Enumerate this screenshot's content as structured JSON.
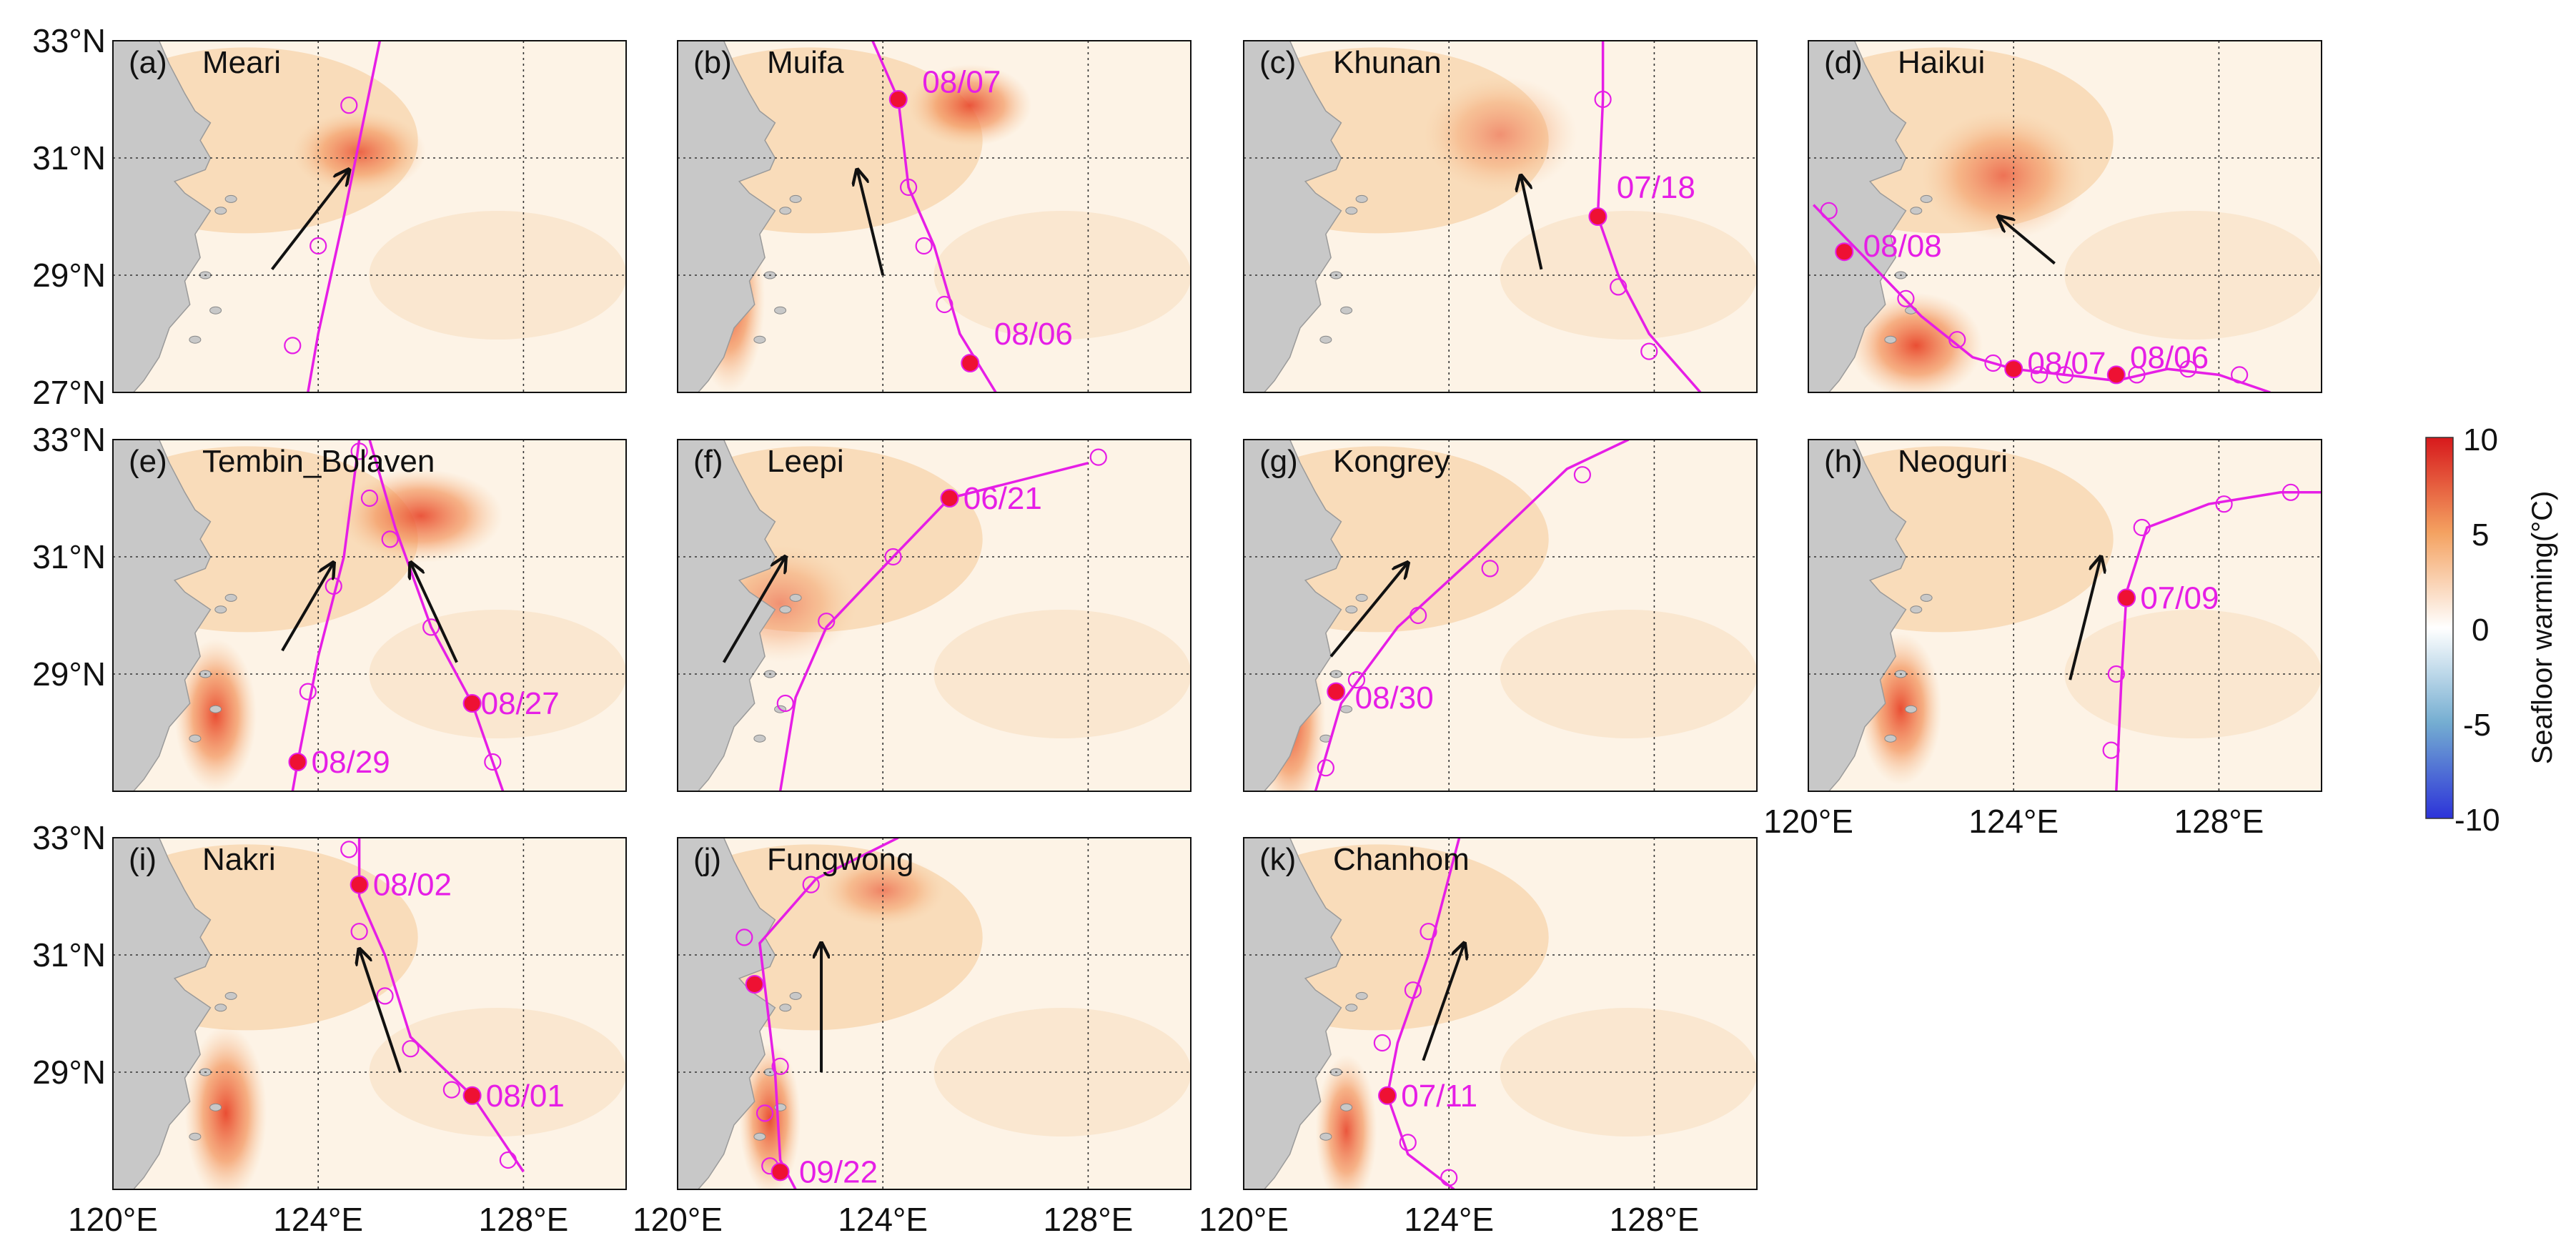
{
  "figure": {
    "lat_labels": [
      "33°N",
      "31°N",
      "29°N",
      "27°N"
    ],
    "lon_labels": [
      "120°E",
      "124°E",
      "128°E"
    ],
    "colorbar": {
      "title": "Seafloor warming(°C)",
      "ticks": [
        "10",
        "5",
        "0",
        "-5",
        "-10"
      ],
      "colors": [
        "#d7191c",
        "#f4a261",
        "#ffffff",
        "#74add1",
        "#2c33d9"
      ]
    }
  },
  "panels": [
    {
      "letter": "(a)",
      "name": "Meari",
      "track": [
        [
          125.2,
          33.0
        ],
        [
          124.5,
          30.0
        ],
        [
          124.0,
          28.0
        ],
        [
          123.8,
          27.0
        ]
      ],
      "circles": [
        [
          124.6,
          31.9
        ],
        [
          124.0,
          29.5
        ],
        [
          123.5,
          27.8
        ]
      ],
      "dots": [],
      "dates": [],
      "arrows": [
        [
          123.1,
          29.1,
          124.6,
          30.8
        ]
      ],
      "hot": [
        [
          124.8,
          31.1,
          1.3,
          0.7,
          0.8
        ]
      ]
    },
    {
      "letter": "(b)",
      "name": "Muifa",
      "track": [
        [
          123.8,
          33.0
        ],
        [
          124.3,
          32.0
        ],
        [
          124.5,
          30.5
        ],
        [
          125.0,
          29.5
        ],
        [
          125.5,
          28.0
        ],
        [
          126.2,
          27.0
        ]
      ],
      "circles": [
        [
          124.5,
          30.5
        ],
        [
          124.8,
          29.5
        ],
        [
          125.2,
          28.5
        ]
      ],
      "dots": [
        [
          124.3,
          32.0
        ],
        [
          125.7,
          27.5
        ]
      ],
      "dates": [
        {
          "text": "08/07",
          "lon": 124.6,
          "lat": 32.3
        },
        {
          "text": "08/06",
          "lon": 126.0,
          "lat": 28.0
        }
      ],
      "arrows": [
        [
          124.0,
          29.0,
          123.5,
          30.8
        ]
      ],
      "hot": [
        [
          121.0,
          28.6,
          0.7,
          1.6,
          0.95
        ],
        [
          125.7,
          31.9,
          1.2,
          0.7,
          0.9
        ]
      ]
    },
    {
      "letter": "(c)",
      "name": "Khunan",
      "track": [
        [
          127.0,
          33.0
        ],
        [
          127.0,
          32.0
        ],
        [
          126.9,
          30.0
        ],
        [
          127.3,
          29.0
        ],
        [
          127.9,
          28.0
        ],
        [
          128.9,
          27.0
        ]
      ],
      "circles": [
        [
          127.0,
          32.0
        ],
        [
          127.3,
          28.8
        ],
        [
          127.9,
          27.7
        ]
      ],
      "dots": [
        [
          126.9,
          30.0
        ]
      ],
      "dates": [
        {
          "text": "07/18",
          "lon": 127.1,
          "lat": 30.5
        }
      ],
      "arrows": [
        [
          125.8,
          29.1,
          125.4,
          30.7
        ]
      ],
      "hot": [
        [
          125.0,
          31.4,
          1.5,
          1.0,
          0.5
        ]
      ]
    },
    {
      "letter": "(d)",
      "name": "Haikui",
      "track": [
        [
          120.1,
          30.2
        ],
        [
          121.1,
          29.3
        ],
        [
          122.2,
          28.3
        ],
        [
          123.2,
          27.6
        ],
        [
          124.0,
          27.4
        ],
        [
          125.0,
          27.3
        ],
        [
          126.0,
          27.2
        ],
        [
          127.0,
          27.4
        ],
        [
          128.0,
          27.3
        ],
        [
          129.0,
          27.0
        ]
      ],
      "circles": [
        [
          120.4,
          30.1
        ],
        [
          121.9,
          28.6
        ],
        [
          122.9,
          27.9
        ],
        [
          123.6,
          27.5
        ],
        [
          124.5,
          27.3
        ],
        [
          125.0,
          27.3
        ],
        [
          126.4,
          27.3
        ],
        [
          127.4,
          27.4
        ],
        [
          128.4,
          27.3
        ]
      ],
      "dots": [
        [
          120.7,
          29.4
        ],
        [
          124.0,
          27.4
        ],
        [
          126.0,
          27.3
        ]
      ],
      "dates": [
        {
          "text": "08/08",
          "lon": 120.9,
          "lat": 29.5
        },
        {
          "text": "08/07",
          "lon": 124.1,
          "lat": 27.5
        },
        {
          "text": "08/06",
          "lon": 126.1,
          "lat": 27.6
        }
      ],
      "arrows": [
        [
          124.8,
          29.2,
          123.7,
          30.0
        ]
      ],
      "hot": [
        [
          122.1,
          27.8,
          1.3,
          0.9,
          0.95
        ],
        [
          123.8,
          30.7,
          1.6,
          1.1,
          0.7
        ]
      ]
    },
    {
      "letter": "(e)",
      "name": "Tembin_Bolaven",
      "track": [
        [
          124.8,
          33.0
        ],
        [
          124.5,
          31.0
        ],
        [
          124.0,
          29.3
        ],
        [
          123.6,
          27.5
        ],
        [
          123.5,
          27.0
        ]
      ],
      "circles": [
        [
          124.8,
          32.8
        ],
        [
          124.3,
          30.5
        ],
        [
          123.8,
          28.7
        ]
      ],
      "dots": [
        [
          123.6,
          27.5
        ],
        [
          127.0,
          28.5
        ]
      ],
      "dates": [
        {
          "text": "08/29",
          "lon": 123.7,
          "lat": 27.5
        },
        {
          "text": "08/27",
          "lon": 127.0,
          "lat": 28.5
        }
      ],
      "arrows": [
        [
          123.3,
          29.4,
          124.3,
          30.9
        ],
        [
          126.7,
          29.2,
          125.8,
          30.9
        ]
      ],
      "hot": [
        [
          122.0,
          28.3,
          0.8,
          1.3,
          0.95
        ],
        [
          126.0,
          31.7,
          1.6,
          0.8,
          0.9
        ]
      ],
      "track2": [
        [
          125.0,
          33.0
        ],
        [
          125.5,
          31.5
        ],
        [
          126.2,
          29.8
        ],
        [
          127.0,
          28.5
        ],
        [
          127.4,
          27.5
        ],
        [
          127.6,
          27.0
        ]
      ],
      "circles2": [
        [
          125.0,
          32.0
        ],
        [
          125.4,
          31.3
        ],
        [
          126.2,
          29.8
        ],
        [
          127.4,
          27.5
        ]
      ]
    },
    {
      "letter": "(f)",
      "name": "Leepi",
      "track": [
        [
          122.0,
          27.0
        ],
        [
          122.3,
          28.6
        ],
        [
          122.9,
          29.8
        ],
        [
          124.2,
          31.0
        ],
        [
          125.3,
          32.0
        ],
        [
          128.0,
          32.6
        ]
      ],
      "circles": [
        [
          122.1,
          28.5
        ],
        [
          122.9,
          29.9
        ],
        [
          124.2,
          31.0
        ],
        [
          128.2,
          32.7
        ]
      ],
      "dots": [
        [
          125.3,
          32.0
        ]
      ],
      "dates": [
        {
          "text": "06/21",
          "lon": 125.4,
          "lat": 32.0
        }
      ],
      "arrows": [
        [
          120.9,
          29.2,
          122.1,
          31.0
        ]
      ],
      "hot": [
        [
          122.0,
          30.2,
          1.5,
          1.0,
          0.5
        ]
      ]
    },
    {
      "letter": "(g)",
      "name": "Kongrey",
      "track": [
        [
          121.4,
          27.0
        ],
        [
          121.9,
          28.5
        ],
        [
          123.0,
          29.8
        ],
        [
          124.5,
          31.0
        ],
        [
          126.3,
          32.5
        ],
        [
          127.5,
          33.0
        ]
      ],
      "circles": [
        [
          121.6,
          27.4
        ],
        [
          122.2,
          28.9
        ],
        [
          123.4,
          30.0
        ],
        [
          124.8,
          30.8
        ],
        [
          126.6,
          32.4
        ]
      ],
      "dots": [
        [
          121.8,
          28.7
        ]
      ],
      "dates": [
        {
          "text": "08/30",
          "lon": 122.0,
          "lat": 28.6
        }
      ],
      "arrows": [
        [
          121.7,
          29.3,
          123.2,
          30.9
        ]
      ],
      "hot": [
        [
          120.9,
          28.2,
          0.7,
          1.6,
          0.95
        ]
      ]
    },
    {
      "letter": "(h)",
      "name": "Neoguri",
      "track": [
        [
          126.0,
          27.0
        ],
        [
          126.1,
          28.9
        ],
        [
          126.2,
          30.4
        ],
        [
          126.6,
          31.5
        ],
        [
          127.8,
          31.9
        ],
        [
          129.2,
          32.1
        ],
        [
          130.0,
          32.1
        ]
      ],
      "circles": [
        [
          125.9,
          27.7
        ],
        [
          126.0,
          29.0
        ],
        [
          126.5,
          31.5
        ],
        [
          128.1,
          31.9
        ],
        [
          129.4,
          32.1
        ]
      ],
      "dots": [
        [
          126.2,
          30.3
        ]
      ],
      "dates": [
        {
          "text": "07/09",
          "lon": 126.3,
          "lat": 30.3
        }
      ],
      "arrows": [
        [
          125.1,
          28.9,
          125.7,
          31.0
        ]
      ],
      "hot": [
        [
          121.8,
          28.4,
          0.8,
          1.3,
          0.95
        ]
      ]
    },
    {
      "letter": "(i)",
      "name": "Nakri",
      "track": [
        [
          124.8,
          33.0
        ],
        [
          124.8,
          32.0
        ],
        [
          125.3,
          31.0
        ],
        [
          125.8,
          29.6
        ],
        [
          127.0,
          28.6
        ],
        [
          128.0,
          27.3
        ]
      ],
      "circles": [
        [
          124.6,
          32.8
        ],
        [
          124.8,
          31.4
        ],
        [
          125.3,
          30.3
        ],
        [
          125.8,
          29.4
        ],
        [
          126.6,
          28.7
        ],
        [
          127.7,
          27.5
        ]
      ],
      "dots": [
        [
          124.8,
          32.2
        ],
        [
          127.0,
          28.6
        ]
      ],
      "dates": [
        {
          "text": "08/02",
          "lon": 124.9,
          "lat": 32.2
        },
        {
          "text": "08/01",
          "lon": 127.1,
          "lat": 28.6
        }
      ],
      "arrows": [
        [
          125.6,
          29.0,
          124.8,
          31.1
        ]
      ],
      "hot": [
        [
          122.2,
          28.3,
          0.8,
          1.5,
          0.95
        ]
      ]
    },
    {
      "letter": "(j)",
      "name": "Fungwong",
      "track": [
        [
          124.3,
          33.0
        ],
        [
          122.7,
          32.3
        ],
        [
          121.6,
          31.2
        ],
        [
          121.9,
          29.0
        ],
        [
          122.0,
          27.5
        ],
        [
          122.3,
          27.0
        ]
      ],
      "circles": [
        [
          122.6,
          32.2
        ],
        [
          121.3,
          31.3
        ],
        [
          122.0,
          29.1
        ],
        [
          121.7,
          28.3
        ],
        [
          121.8,
          27.4
        ]
      ],
      "dots": [
        [
          121.5,
          30.5
        ],
        [
          122.0,
          27.3
        ]
      ],
      "dates": [
        {
          "text": "09/22",
          "lon": 122.2,
          "lat": 27.3
        }
      ],
      "arrows": [
        [
          122.8,
          29.0,
          122.8,
          31.2
        ]
      ],
      "hot": [
        [
          121.8,
          28.2,
          0.6,
          1.3,
          0.95
        ],
        [
          124.0,
          32.1,
          1.2,
          0.6,
          0.6
        ]
      ]
    },
    {
      "letter": "(k)",
      "name": "Chanhom",
      "track": [
        [
          124.2,
          33.0
        ],
        [
          123.6,
          31.0
        ],
        [
          123.0,
          29.5
        ],
        [
          122.8,
          28.6
        ],
        [
          123.2,
          27.6
        ],
        [
          124.1,
          27.0
        ]
      ],
      "circles": [
        [
          123.6,
          31.4
        ],
        [
          123.3,
          30.4
        ],
        [
          122.7,
          29.5
        ],
        [
          123.2,
          27.8
        ],
        [
          124.0,
          27.2
        ]
      ],
      "dots": [
        [
          122.8,
          28.6
        ]
      ],
      "dates": [
        {
          "text": "07/11",
          "lon": 122.9,
          "lat": 28.6
        }
      ],
      "arrows": [
        [
          123.5,
          29.2,
          124.3,
          31.2
        ]
      ],
      "hot": [
        [
          122.0,
          28.0,
          0.6,
          1.3,
          0.9
        ]
      ]
    }
  ]
}
